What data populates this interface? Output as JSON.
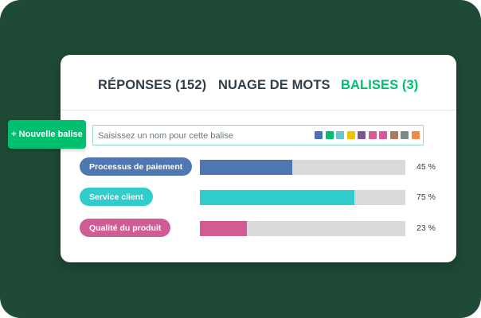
{
  "tabs": [
    {
      "label": "RÉPONSES (152)",
      "active": false
    },
    {
      "label": "NUAGE DE MOTS",
      "active": false
    },
    {
      "label": "BALISES (3)",
      "active": true
    }
  ],
  "new_tag_button": {
    "label": "+ Nouvelle balise"
  },
  "tag_input": {
    "placeholder": "Saisissez un nom pour cette balise",
    "swatches": [
      "#4a72b8",
      "#00bf6f",
      "#6cc5c9",
      "#f2c200",
      "#7a5a8c",
      "#d35c95",
      "#d45c9a",
      "#a57d5b",
      "#7b8886",
      "#f28a4b"
    ]
  },
  "tags": [
    {
      "label": "Processus de paiement",
      "percent_label": "45 %",
      "fraction": 0.45,
      "color": "#4f78b3"
    },
    {
      "label": "Service client",
      "percent_label": "75 %",
      "fraction": 0.75,
      "color": "#31cccc"
    },
    {
      "label": "Qualité du produit",
      "percent_label": "23 %",
      "fraction": 0.23,
      "color": "#d05c94"
    }
  ],
  "colors": {
    "background": "#1f4a36",
    "accent": "#00bf6f",
    "bar_track": "#d9d9d9"
  }
}
